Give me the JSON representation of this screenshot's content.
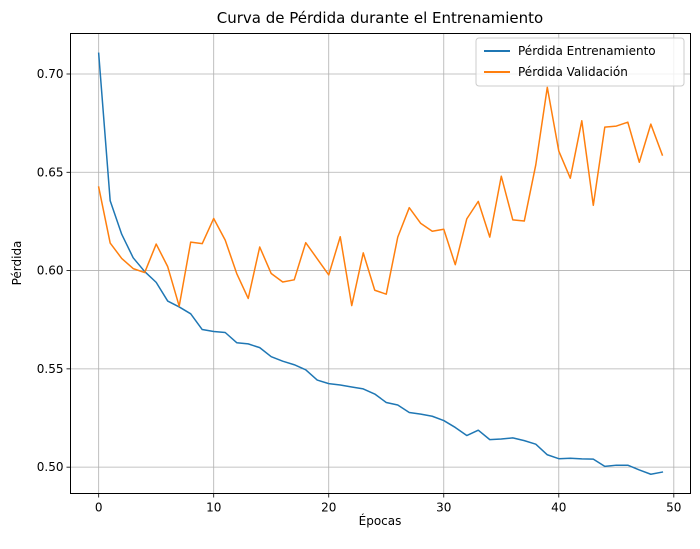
{
  "chart_data": {
    "type": "line",
    "title": "Curva de Pérdida durante el Entrenamiento",
    "xlabel": "Épocas",
    "ylabel": "Pérdida",
    "xlim": [
      -2.45,
      51.45
    ],
    "ylim": [
      0.4866,
      0.7206
    ],
    "xticks": [
      0,
      10,
      20,
      30,
      40,
      50
    ],
    "yticks": [
      0.5,
      0.55,
      0.6,
      0.65,
      0.7
    ],
    "ytick_labels": [
      "0.50",
      "0.55",
      "0.60",
      "0.65",
      "0.70"
    ],
    "grid": true,
    "legend_position": "top-right",
    "x": [
      0,
      1,
      2,
      3,
      4,
      5,
      6,
      7,
      8,
      9,
      10,
      11,
      12,
      13,
      14,
      15,
      16,
      17,
      18,
      19,
      20,
      21,
      22,
      23,
      24,
      25,
      26,
      27,
      28,
      29,
      30,
      31,
      32,
      33,
      34,
      35,
      36,
      37,
      38,
      39,
      40,
      41,
      42,
      43,
      44,
      45,
      46,
      47,
      48,
      49
    ],
    "series": [
      {
        "name": "Pérdida Entrenamiento",
        "color": "#1f77b4",
        "values": [
          0.7105,
          0.6355,
          0.6185,
          0.6065,
          0.5995,
          0.594,
          0.5845,
          0.5815,
          0.578,
          0.57,
          0.569,
          0.5685,
          0.5633,
          0.5627,
          0.5608,
          0.5562,
          0.5539,
          0.5521,
          0.5495,
          0.5443,
          0.5425,
          0.5418,
          0.5408,
          0.5398,
          0.5372,
          0.5329,
          0.5316,
          0.5278,
          0.527,
          0.5259,
          0.5237,
          0.5202,
          0.5161,
          0.5188,
          0.514,
          0.5143,
          0.5149,
          0.5135,
          0.5117,
          0.5063,
          0.5043,
          0.5045,
          0.5042,
          0.5041,
          0.5004,
          0.501,
          0.501,
          0.4986,
          0.4964,
          0.4975
        ]
      },
      {
        "name": "Pérdida Validación",
        "color": "#ff7f0e",
        "values": [
          0.6425,
          0.614,
          0.6062,
          0.601,
          0.599,
          0.6135,
          0.602,
          0.5819,
          0.6145,
          0.6137,
          0.6265,
          0.6155,
          0.5985,
          0.5858,
          0.612,
          0.5985,
          0.5942,
          0.5953,
          0.6142,
          0.606,
          0.5978,
          0.6172,
          0.5822,
          0.609,
          0.59,
          0.588,
          0.617,
          0.632,
          0.624,
          0.62,
          0.621,
          0.603,
          0.6263,
          0.6352,
          0.617,
          0.648,
          0.6258,
          0.6252,
          0.6538,
          0.6932,
          0.6608,
          0.647,
          0.6762,
          0.6332,
          0.673,
          0.6735,
          0.6755,
          0.6551,
          0.6745,
          0.6588
        ]
      }
    ]
  }
}
